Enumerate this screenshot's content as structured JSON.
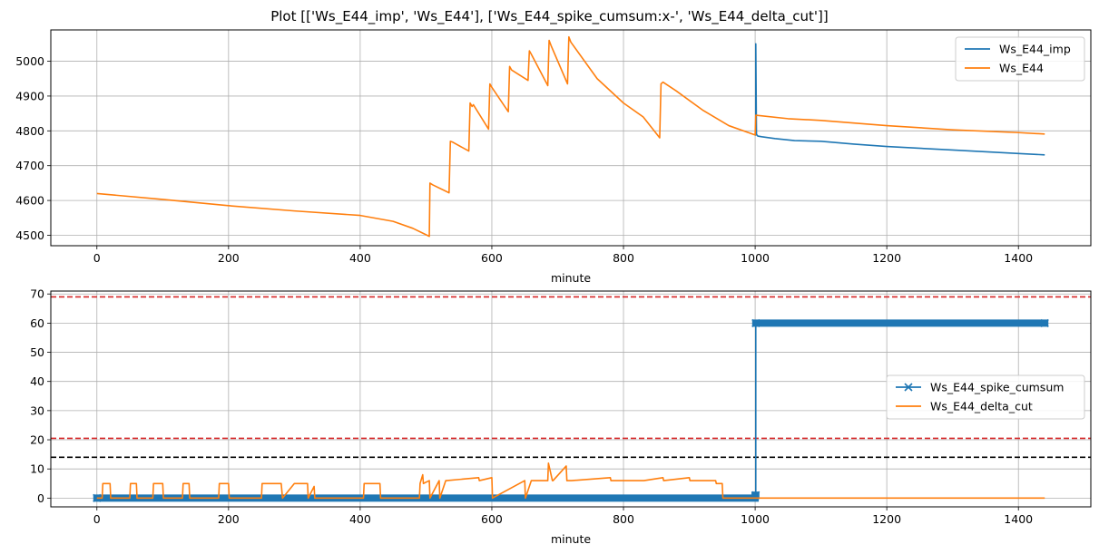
{
  "figure": {
    "title": "Plot [['Ws_E44_imp', 'Ws_E44'], ['Ws_E44_spike_cumsum:x-', 'Ws_E44_delta_cut']]"
  },
  "chart_data": [
    {
      "type": "line",
      "xlabel": "minute",
      "ylabel": "",
      "xlim": [
        -70,
        1510
      ],
      "ylim": [
        4470,
        5090
      ],
      "xticks": [
        0,
        200,
        400,
        600,
        800,
        1000,
        1200,
        1400
      ],
      "yticks": [
        4500,
        4600,
        4700,
        4800,
        4900,
        5000
      ],
      "grid": true,
      "legend": "top-right",
      "series": [
        {
          "name": "Ws_E44_imp",
          "color": "#1f77b4",
          "x": [
            1000,
            1001,
            1001,
            1002,
            1004,
            1010,
            1030,
            1060,
            1100,
            1150,
            1200,
            1300,
            1400,
            1440
          ],
          "y": [
            4788,
            4788,
            5050,
            4790,
            4785,
            4783,
            4778,
            4772,
            4770,
            4762,
            4755,
            4745,
            4735,
            4731
          ]
        },
        {
          "name": "Ws_E44",
          "color": "#ff7f0e",
          "x": [
            0,
            100,
            200,
            300,
            400,
            450,
            480,
            505,
            506,
            510,
            535,
            537,
            540,
            565,
            567,
            570,
            572,
            595,
            597,
            600,
            625,
            627,
            630,
            655,
            657,
            660,
            685,
            687,
            690,
            715,
            717,
            720,
            760,
            800,
            830,
            855,
            857,
            860,
            880,
            920,
            960,
            1000,
            1001,
            1050,
            1100,
            1200,
            1300,
            1400,
            1440
          ],
          "y": [
            4620,
            4603,
            4585,
            4570,
            4557,
            4540,
            4520,
            4497,
            4650,
            4645,
            4622,
            4770,
            4768,
            4742,
            4880,
            4870,
            4875,
            4805,
            4935,
            4925,
            4855,
            4985,
            4975,
            4945,
            5030,
            5020,
            4930,
            5060,
            5045,
            4935,
            5070,
            5055,
            4950,
            4880,
            4840,
            4780,
            4935,
            4940,
            4915,
            4860,
            4815,
            4788,
            4845,
            4835,
            4830,
            4815,
            4803,
            4795,
            4791
          ]
        }
      ]
    },
    {
      "type": "line",
      "xlabel": "minute",
      "ylabel": "",
      "xlim": [
        -70,
        1510
      ],
      "ylim": [
        -3,
        71
      ],
      "xticks": [
        0,
        200,
        400,
        600,
        800,
        1000,
        1200,
        1400
      ],
      "yticks": [
        0,
        10,
        20,
        30,
        40,
        50,
        60,
        70
      ],
      "grid": true,
      "legend": "center-right",
      "hlines": [
        {
          "y": 69,
          "color": "#d62728",
          "style": "dashed"
        },
        {
          "y": 20.5,
          "color": "#d62728",
          "style": "dashed"
        },
        {
          "y": 14,
          "color": "#000000",
          "style": "dashed"
        }
      ],
      "series": [
        {
          "name": "Ws_E44_spike_cumsum",
          "color": "#1f77b4",
          "marker": "x",
          "x": [
            0,
            1000,
            1000,
            1001,
            1001,
            1440
          ],
          "y": [
            0,
            0,
            1,
            1,
            60,
            60
          ]
        },
        {
          "name": "Ws_E44_delta_cut",
          "color": "#ff7f0e",
          "x": [
            0,
            8,
            9,
            20,
            21,
            50,
            51,
            60,
            61,
            85,
            86,
            100,
            101,
            130,
            131,
            140,
            141,
            185,
            186,
            200,
            201,
            250,
            251,
            280,
            282,
            300,
            301,
            320,
            321,
            330,
            331,
            405,
            406,
            430,
            431,
            490,
            491,
            495,
            496,
            505,
            506,
            520,
            521,
            530,
            531,
            580,
            581,
            600,
            601,
            650,
            651,
            660,
            661,
            685,
            686,
            692,
            693,
            713,
            714,
            720,
            721,
            780,
            781,
            830,
            831,
            860,
            861,
            900,
            901,
            940,
            941,
            950,
            951,
            1000,
            1001,
            1440
          ],
          "y": [
            0,
            0,
            5,
            5,
            0,
            0,
            5,
            5,
            0,
            0,
            5,
            5,
            0,
            0,
            5,
            5,
            0,
            0,
            5,
            5,
            0,
            0,
            5,
            5,
            0,
            5,
            5,
            5,
            0,
            4,
            0,
            0,
            5,
            5,
            0,
            0,
            5,
            8,
            5,
            6,
            0,
            6,
            0,
            6,
            6,
            7,
            6,
            7,
            0,
            6,
            0,
            6,
            6,
            6,
            12,
            6,
            6,
            11,
            6,
            6,
            6,
            7,
            6,
            6,
            6,
            7,
            6,
            7,
            6,
            6,
            5,
            5,
            0,
            0,
            0,
            0
          ]
        }
      ]
    }
  ]
}
